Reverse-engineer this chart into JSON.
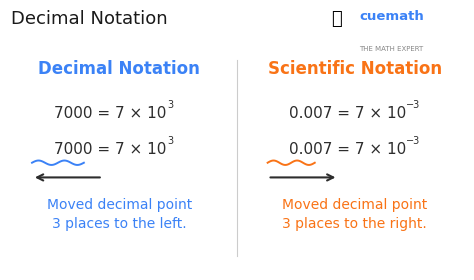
{
  "title": "Decimal Notation",
  "title_color": "#1a1a1a",
  "title_fontsize": 13,
  "bg_color": "#ffffff",
  "left_header": "Decimal Notation",
  "right_header": "Scientific Notation",
  "header_fontsize": 12,
  "left_color": "#3b82f6",
  "right_color": "#f97316",
  "dark_color": "#2d2d2d",
  "left_eq1": "7000 = 7 × 10",
  "left_eq1_exp": "3",
  "left_eq2": "7000 = 7 × 10",
  "left_eq2_exp": "3",
  "right_eq1": "0.007 = 7 × 10",
  "right_eq1_exp": "−3",
  "right_eq2": "0.007 = 7 × 10",
  "right_eq2_exp": "−3",
  "left_note": "Moved decimal point\n3 places to the left.",
  "right_note": "Moved decimal point\n3 places to the right.",
  "note_fontsize": 10,
  "eq_fontsize": 11,
  "cuemath_color": "#3b82f6",
  "cuemath_sub_color": "#888888"
}
